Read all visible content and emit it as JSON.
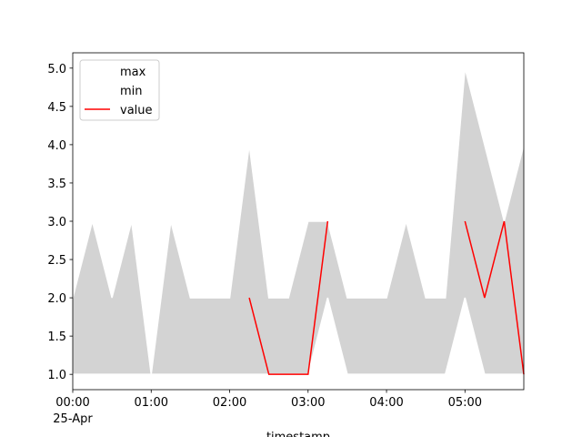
{
  "chart_data": {
    "type": "line",
    "x": [
      0,
      0.25,
      0.5,
      0.75,
      1,
      1.25,
      1.5,
      1.75,
      2,
      2.25,
      2.5,
      2.75,
      3,
      3.25,
      3.5,
      3.75,
      4,
      4.25,
      4.5,
      4.75,
      5,
      5.25,
      5.5,
      5.75
    ],
    "series": [
      {
        "name": "max",
        "color": "#ffffff",
        "values": [
          2,
          3,
          2,
          3,
          1,
          3,
          2,
          2,
          2,
          4,
          2,
          2,
          3,
          3,
          2,
          2,
          2,
          3,
          2,
          2,
          5,
          4,
          3,
          4
        ]
      },
      {
        "name": "min",
        "color": "#ffffff",
        "values": [
          1,
          1,
          1,
          1,
          1,
          1,
          1,
          1,
          1,
          1,
          1,
          1,
          1,
          2,
          1,
          1,
          1,
          1,
          1,
          1,
          2,
          1,
          1,
          1
        ]
      },
      {
        "name": "value",
        "color": "#ff0000",
        "values": [
          null,
          null,
          null,
          null,
          null,
          null,
          null,
          null,
          null,
          2,
          1,
          1,
          1,
          3,
          null,
          null,
          null,
          null,
          null,
          null,
          3,
          2,
          3,
          1
        ]
      }
    ],
    "fill_color": "#d3d3d3",
    "xlabel": "timestamp",
    "x_date_label": "25-Apr",
    "xlim": [
      0,
      5.75
    ],
    "xticks": [
      {
        "value": 0,
        "label": "00:00"
      },
      {
        "value": 1,
        "label": "01:00"
      },
      {
        "value": 2,
        "label": "02:00"
      },
      {
        "value": 3,
        "label": "03:00"
      },
      {
        "value": 4,
        "label": "04:00"
      },
      {
        "value": 5,
        "label": "05:00"
      }
    ],
    "ylim": [
      0.8,
      5.2
    ],
    "yticks": [
      {
        "value": 1,
        "label": "1.0"
      },
      {
        "value": 1.5,
        "label": "1.5"
      },
      {
        "value": 2,
        "label": "2.0"
      },
      {
        "value": 2.5,
        "label": "2.5"
      },
      {
        "value": 3,
        "label": "3.0"
      },
      {
        "value": 3.5,
        "label": "3.5"
      },
      {
        "value": 4,
        "label": "4.0"
      },
      {
        "value": 4.5,
        "label": "4.5"
      },
      {
        "value": 5,
        "label": "5.0"
      }
    ],
    "legend": "upper left"
  }
}
